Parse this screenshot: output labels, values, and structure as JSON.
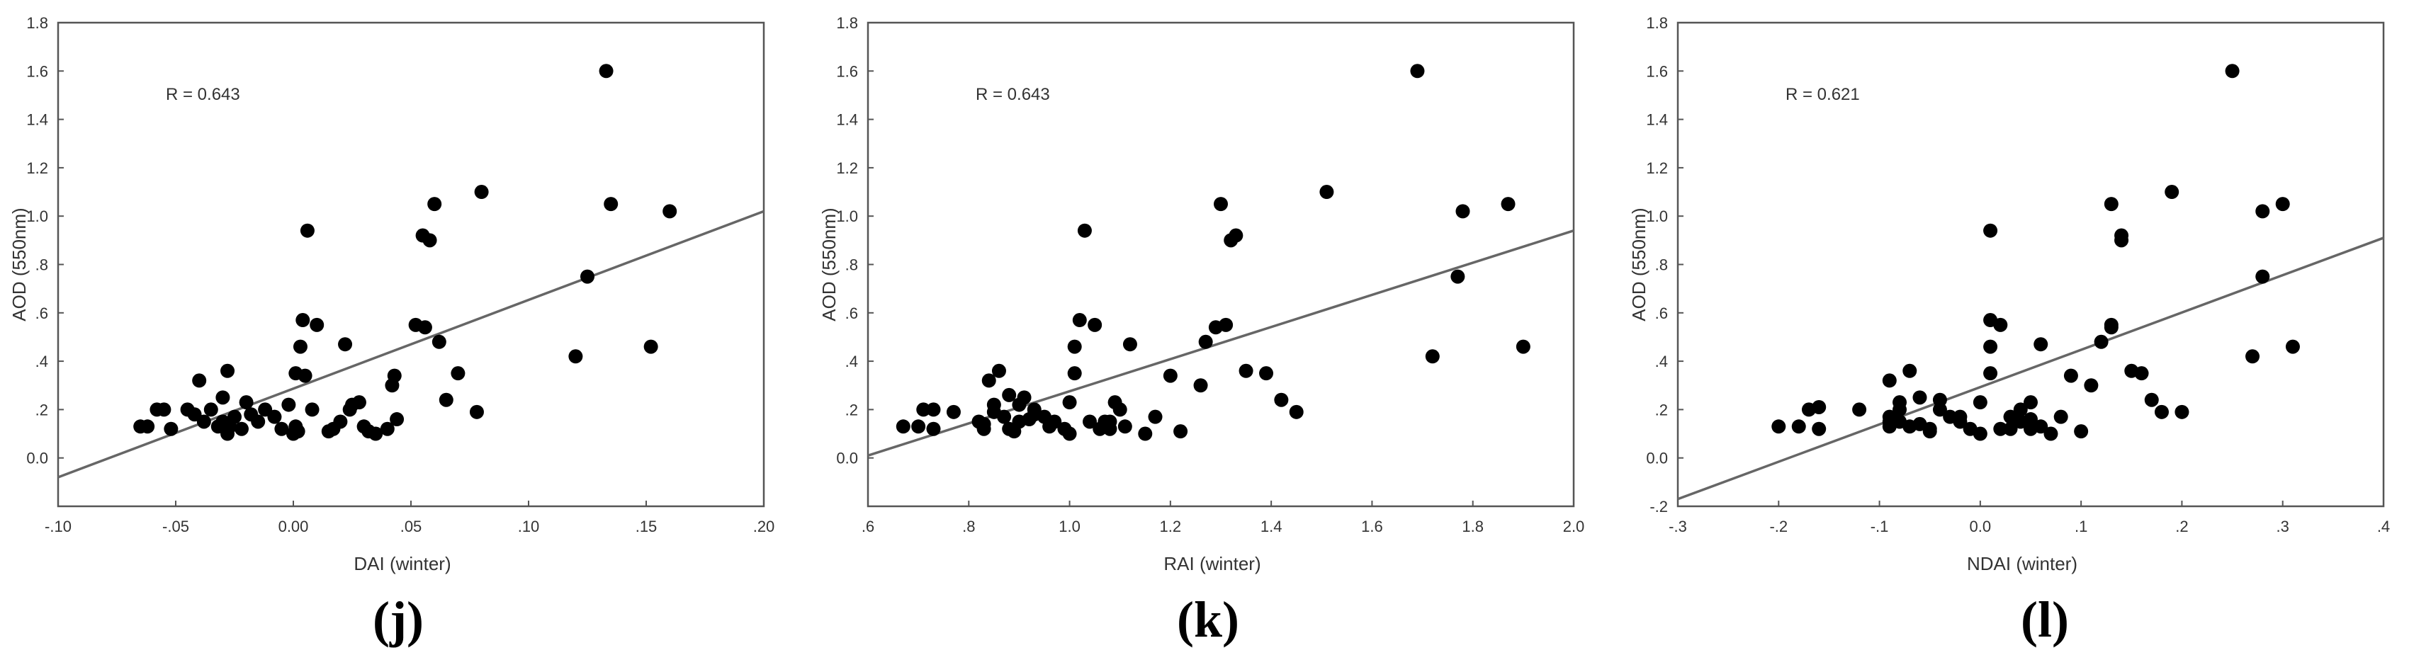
{
  "chart_data": [
    {
      "type": "scatter",
      "panel_label": "(j)",
      "xlabel": "DAI (winter)",
      "ylabel": "AOD (550nm)",
      "annotation": "R = 0.643",
      "xlim": [
        -0.1,
        0.2
      ],
      "ylim": [
        -0.2,
        1.8
      ],
      "xticks": [
        -0.1,
        -0.05,
        0.0,
        0.05,
        0.1,
        0.15,
        0.2
      ],
      "xtick_labels": [
        "-.10",
        "-.05",
        "0.00",
        ".05",
        ".10",
        ".15",
        ".20"
      ],
      "yticks": [
        0.0,
        0.2,
        0.4,
        0.6,
        0.8,
        1.0,
        1.2,
        1.4,
        1.6,
        1.8
      ],
      "ytick_labels": [
        "0.0",
        ".2",
        ".4",
        ".6",
        ".8",
        "1.0",
        "1.2",
        "1.4",
        "1.6",
        "1.8"
      ],
      "fit_line": {
        "x": [
          -0.1,
          0.2
        ],
        "y": [
          -0.08,
          1.02
        ]
      },
      "points": {
        "x": [
          -0.065,
          -0.062,
          -0.058,
          -0.055,
          -0.052,
          -0.045,
          -0.042,
          -0.04,
          -0.038,
          -0.035,
          -0.032,
          -0.03,
          -0.03,
          -0.028,
          -0.028,
          -0.027,
          -0.025,
          -0.022,
          -0.02,
          -0.018,
          -0.015,
          -0.012,
          -0.008,
          -0.005,
          -0.002,
          0.0,
          0.001,
          0.002,
          0.003,
          0.004,
          0.005,
          0.006,
          0.01,
          0.015,
          0.017,
          0.02,
          0.022,
          0.025,
          0.028,
          0.03,
          0.032,
          0.035,
          0.04,
          0.042,
          0.043,
          0.052,
          0.055,
          0.056,
          0.058,
          0.06,
          0.062,
          0.065,
          0.07,
          0.078,
          0.08,
          0.12,
          0.125,
          0.133,
          0.135,
          0.152,
          0.16,
          0.044,
          0.024,
          0.008,
          0.001
        ],
        "y": [
          0.13,
          0.13,
          0.2,
          0.2,
          0.12,
          0.2,
          0.18,
          0.32,
          0.15,
          0.2,
          0.13,
          0.15,
          0.25,
          0.1,
          0.36,
          0.13,
          0.17,
          0.12,
          0.23,
          0.18,
          0.15,
          0.2,
          0.17,
          0.12,
          0.22,
          0.1,
          0.35,
          0.11,
          0.46,
          0.57,
          0.34,
          0.94,
          0.55,
          0.11,
          0.12,
          0.15,
          0.47,
          0.22,
          0.23,
          0.13,
          0.11,
          0.1,
          0.12,
          0.3,
          0.34,
          0.55,
          0.92,
          0.54,
          0.9,
          1.05,
          0.48,
          0.24,
          0.35,
          0.19,
          1.1,
          0.42,
          0.75,
          1.6,
          1.05,
          0.46,
          1.02,
          0.16,
          0.2,
          0.2,
          0.13
        ]
      }
    },
    {
      "type": "scatter",
      "panel_label": "(k)",
      "xlabel": "RAI (winter)",
      "ylabel": "AOD (550nm)",
      "annotation": "R = 0.643",
      "xlim": [
        0.6,
        2.0
      ],
      "ylim": [
        -0.2,
        1.8
      ],
      "xticks": [
        0.6,
        0.8,
        1.0,
        1.2,
        1.4,
        1.6,
        1.8,
        2.0
      ],
      "xtick_labels": [
        ".6",
        ".8",
        "1.0",
        "1.2",
        "1.4",
        "1.6",
        "1.8",
        "2.0"
      ],
      "yticks": [
        0.0,
        0.2,
        0.4,
        0.6,
        0.8,
        1.0,
        1.2,
        1.4,
        1.6,
        1.8
      ],
      "ytick_labels": [
        "0.0",
        ".2",
        ".4",
        ".6",
        ".8",
        "1.0",
        "1.2",
        "1.4",
        "1.6",
        "1.8"
      ],
      "fit_line": {
        "x": [
          0.6,
          2.0
        ],
        "y": [
          0.01,
          0.94
        ]
      },
      "points": {
        "x": [
          0.67,
          0.7,
          0.71,
          0.73,
          0.73,
          0.77,
          0.82,
          0.83,
          0.83,
          0.84,
          0.85,
          0.86,
          0.87,
          0.88,
          0.88,
          0.89,
          0.9,
          0.91,
          0.92,
          0.93,
          0.95,
          0.96,
          0.97,
          0.99,
          1.0,
          1.0,
          1.01,
          1.01,
          1.02,
          1.03,
          1.04,
          1.05,
          1.06,
          1.07,
          1.08,
          1.09,
          1.1,
          1.11,
          1.12,
          1.15,
          1.17,
          1.2,
          1.22,
          1.26,
          1.27,
          1.29,
          1.3,
          1.31,
          1.32,
          1.33,
          1.35,
          1.39,
          1.42,
          1.45,
          1.51,
          1.69,
          1.72,
          1.77,
          1.78,
          1.87,
          1.9,
          0.85,
          0.9,
          1.08,
          0.93
        ],
        "y": [
          0.13,
          0.13,
          0.2,
          0.2,
          0.12,
          0.19,
          0.15,
          0.12,
          0.14,
          0.32,
          0.22,
          0.36,
          0.17,
          0.26,
          0.12,
          0.11,
          0.22,
          0.25,
          0.16,
          0.2,
          0.17,
          0.13,
          0.15,
          0.12,
          0.1,
          0.23,
          0.35,
          0.46,
          0.57,
          0.94,
          0.15,
          0.55,
          0.12,
          0.15,
          0.12,
          0.23,
          0.2,
          0.13,
          0.47,
          0.1,
          0.17,
          0.34,
          0.11,
          0.3,
          0.48,
          0.54,
          1.05,
          0.55,
          0.9,
          0.92,
          0.36,
          0.35,
          0.24,
          0.19,
          1.1,
          1.6,
          0.42,
          0.75,
          1.02,
          1.05,
          0.46,
          0.19,
          0.15,
          0.15,
          0.18
        ]
      }
    },
    {
      "type": "scatter",
      "panel_label": "(l)",
      "xlabel": "NDAI (winter)",
      "ylabel": "AOD (550nm)",
      "annotation": "R = 0.621",
      "xlim": [
        -0.3,
        0.4
      ],
      "ylim": [
        -0.2,
        1.8
      ],
      "xticks": [
        -0.3,
        -0.2,
        -0.1,
        0.0,
        0.1,
        0.2,
        0.3,
        0.4
      ],
      "xtick_labels": [
        "-.3",
        "-.2",
        "-.1",
        "0.0",
        ".1",
        ".2",
        ".3",
        ".4"
      ],
      "yticks": [
        -0.2,
        0.0,
        0.2,
        0.4,
        0.6,
        0.8,
        1.0,
        1.2,
        1.4,
        1.6,
        1.8
      ],
      "ytick_labels": [
        "-.2",
        "0.0",
        ".2",
        ".4",
        ".6",
        ".8",
        "1.0",
        "1.2",
        "1.4",
        "1.6",
        "1.8"
      ],
      "fit_line": {
        "x": [
          -0.3,
          0.4
        ],
        "y": [
          -0.17,
          0.91
        ]
      },
      "points": {
        "x": [
          -0.2,
          -0.18,
          -0.17,
          -0.16,
          -0.16,
          -0.12,
          -0.09,
          -0.09,
          -0.09,
          -0.08,
          -0.08,
          -0.08,
          -0.07,
          -0.07,
          -0.06,
          -0.05,
          -0.05,
          -0.04,
          -0.04,
          -0.03,
          -0.02,
          -0.02,
          -0.01,
          0.0,
          0.0,
          0.01,
          0.01,
          0.01,
          0.01,
          0.02,
          0.02,
          0.03,
          0.04,
          0.04,
          0.05,
          0.05,
          0.06,
          0.06,
          0.07,
          0.08,
          0.09,
          0.1,
          0.11,
          0.12,
          0.13,
          0.13,
          0.13,
          0.14,
          0.14,
          0.15,
          0.16,
          0.17,
          0.18,
          0.19,
          0.2,
          0.25,
          0.27,
          0.28,
          0.28,
          0.3,
          0.31,
          -0.09,
          -0.06,
          0.05,
          0.03
        ],
        "y": [
          0.13,
          0.13,
          0.2,
          0.21,
          0.12,
          0.2,
          0.13,
          0.17,
          0.32,
          0.15,
          0.23,
          0.2,
          0.36,
          0.13,
          0.25,
          0.12,
          0.11,
          0.24,
          0.2,
          0.17,
          0.17,
          0.15,
          0.12,
          0.1,
          0.23,
          0.35,
          0.46,
          0.57,
          0.94,
          0.12,
          0.55,
          0.12,
          0.15,
          0.2,
          0.12,
          0.23,
          0.47,
          0.13,
          0.1,
          0.17,
          0.34,
          0.11,
          0.3,
          0.48,
          0.54,
          1.05,
          0.55,
          0.9,
          0.92,
          0.36,
          0.35,
          0.24,
          0.19,
          1.1,
          0.19,
          1.6,
          0.42,
          0.75,
          1.02,
          1.05,
          0.46,
          0.15,
          0.14,
          0.16,
          0.17
        ]
      }
    }
  ]
}
